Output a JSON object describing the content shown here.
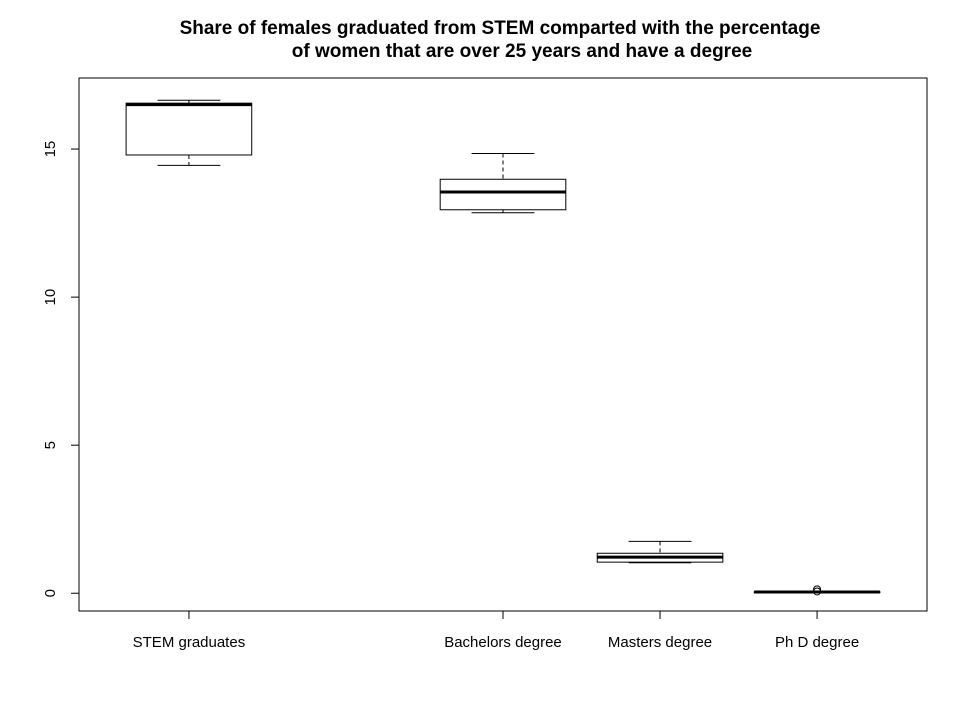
{
  "chart_data": {
    "type": "boxplot",
    "title_lines": [
      "Share of females graduated from STEM comparted with the percentage",
      "of women that are over 25 years and have a degree"
    ],
    "xlabel": "",
    "ylabel": "",
    "ylim": [
      -0.6,
      17.4
    ],
    "yticks": [
      0,
      5,
      10,
      15
    ],
    "grid": false,
    "categories": [
      "STEM graduates",
      "Bachelors degree",
      "Masters degree",
      "Ph D degree"
    ],
    "positions": [
      1,
      3,
      4,
      5
    ],
    "xlim": [
      0.3,
      5.7
    ],
    "boxes": [
      {
        "label": "STEM graduates",
        "whisker_low": 14.45,
        "q1": 14.8,
        "median": 16.5,
        "q3": 16.55,
        "whisker_high": 16.65,
        "outliers": []
      },
      {
        "label": "Bachelors degree",
        "whisker_low": 12.85,
        "q1": 12.95,
        "median": 13.55,
        "q3": 13.98,
        "whisker_high": 14.85,
        "outliers": []
      },
      {
        "label": "Masters degree",
        "whisker_low": 1.03,
        "q1": 1.05,
        "median": 1.22,
        "q3": 1.35,
        "whisker_high": 1.75,
        "outliers": []
      },
      {
        "label": "Ph D degree",
        "whisker_low": 0.02,
        "q1": 0.03,
        "median": 0.04,
        "q3": 0.05,
        "whisker_high": 0.06,
        "outliers": [
          0.06,
          0.13
        ]
      }
    ]
  }
}
